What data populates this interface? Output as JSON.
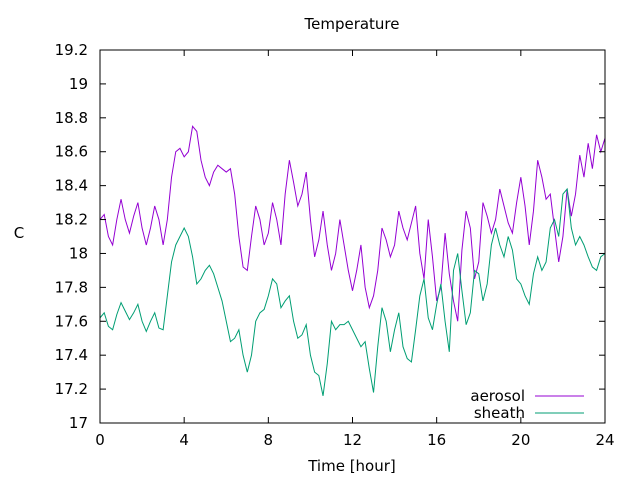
{
  "chart_data": {
    "type": "line",
    "title": "Temperature",
    "xlabel": "Time [hour]",
    "ylabel": "C",
    "xlim": [
      0,
      24
    ],
    "ylim": [
      17,
      19.2
    ],
    "xticks": [
      0,
      4,
      8,
      12,
      16,
      20,
      24
    ],
    "yticks": [
      17,
      17.2,
      17.4,
      17.6,
      17.8,
      18,
      18.2,
      18.4,
      18.6,
      18.8,
      19,
      19.2
    ],
    "xtick_labels": [
      "0",
      "4",
      "8",
      "12",
      "16",
      "20",
      "24"
    ],
    "ytick_labels": [
      "17",
      "17.2",
      "17.4",
      "17.6",
      "17.8",
      "18",
      "18.2",
      "18.4",
      "18.6",
      "18.8",
      "19",
      "19.2"
    ],
    "grid": false,
    "legend_position": "bottom-right",
    "series": [
      {
        "name": "aerosol",
        "color": "#9400d3",
        "x": [
          0,
          0.2,
          0.4,
          0.6,
          0.8,
          1.0,
          1.2,
          1.4,
          1.6,
          1.8,
          2.0,
          2.2,
          2.4,
          2.6,
          2.8,
          3.0,
          3.2,
          3.4,
          3.6,
          3.8,
          4.0,
          4.2,
          4.4,
          4.6,
          4.8,
          5.0,
          5.2,
          5.4,
          5.6,
          5.8,
          6.0,
          6.2,
          6.4,
          6.6,
          6.8,
          7.0,
          7.2,
          7.4,
          7.6,
          7.8,
          8.0,
          8.2,
          8.4,
          8.6,
          8.8,
          9.0,
          9.2,
          9.4,
          9.6,
          9.8,
          10.0,
          10.2,
          10.4,
          10.6,
          10.8,
          11.0,
          11.2,
          11.4,
          11.6,
          11.8,
          12.0,
          12.2,
          12.4,
          12.6,
          12.8,
          13.0,
          13.2,
          13.4,
          13.6,
          13.8,
          14.0,
          14.2,
          14.4,
          14.6,
          14.8,
          15.0,
          15.2,
          15.4,
          15.6,
          15.8,
          16.0,
          16.2,
          16.4,
          16.6,
          16.8,
          17.0,
          17.2,
          17.4,
          17.6,
          17.8,
          18.0,
          18.2,
          18.4,
          18.6,
          18.8,
          19.0,
          19.2,
          19.4,
          19.6,
          19.8,
          20.0,
          20.2,
          20.4,
          20.6,
          20.8,
          21.0,
          21.2,
          21.4,
          21.6,
          21.8,
          22.0,
          22.2,
          22.4,
          22.6,
          22.8,
          23.0,
          23.2,
          23.4,
          23.6,
          23.8,
          24.0
        ],
        "y": [
          18.2,
          18.23,
          18.1,
          18.05,
          18.2,
          18.32,
          18.2,
          18.12,
          18.22,
          18.3,
          18.15,
          18.05,
          18.15,
          18.28,
          18.2,
          18.05,
          18.2,
          18.45,
          18.6,
          18.62,
          18.57,
          18.6,
          18.75,
          18.72,
          18.55,
          18.45,
          18.4,
          18.48,
          18.52,
          18.5,
          18.48,
          18.5,
          18.35,
          18.1,
          17.92,
          17.9,
          18.1,
          18.28,
          18.2,
          18.05,
          18.12,
          18.3,
          18.2,
          18.05,
          18.35,
          18.55,
          18.42,
          18.28,
          18.35,
          18.48,
          18.2,
          17.98,
          18.08,
          18.25,
          18.05,
          17.9,
          18.0,
          18.2,
          18.05,
          17.9,
          17.78,
          17.9,
          18.05,
          17.8,
          17.68,
          17.75,
          17.9,
          18.15,
          18.08,
          17.98,
          18.05,
          18.25,
          18.15,
          18.08,
          18.18,
          18.28,
          18.0,
          17.85,
          18.2,
          17.98,
          17.72,
          17.8,
          18.12,
          17.88,
          17.72,
          17.6,
          18.02,
          18.25,
          18.15,
          17.85,
          17.95,
          18.3,
          18.22,
          18.12,
          18.2,
          18.38,
          18.28,
          18.18,
          18.12,
          18.3,
          18.45,
          18.28,
          18.05,
          18.25,
          18.55,
          18.45,
          18.32,
          18.35,
          18.15,
          17.95,
          18.1,
          18.38,
          18.22,
          18.35,
          18.58,
          18.45,
          18.65,
          18.5,
          18.7,
          18.6,
          18.68
        ],
        "x_note": ""
      },
      {
        "name": "sheath",
        "color": "#009e73",
        "x": [
          0,
          0.2,
          0.4,
          0.6,
          0.8,
          1.0,
          1.2,
          1.4,
          1.6,
          1.8,
          2.0,
          2.2,
          2.4,
          2.6,
          2.8,
          3.0,
          3.2,
          3.4,
          3.6,
          3.8,
          4.0,
          4.2,
          4.4,
          4.6,
          4.8,
          5.0,
          5.2,
          5.4,
          5.6,
          5.8,
          6.0,
          6.2,
          6.4,
          6.6,
          6.8,
          7.0,
          7.2,
          7.4,
          7.6,
          7.8,
          8.0,
          8.2,
          8.4,
          8.6,
          8.8,
          9.0,
          9.2,
          9.4,
          9.6,
          9.8,
          10.0,
          10.2,
          10.4,
          10.6,
          10.8,
          11.0,
          11.2,
          11.4,
          11.6,
          11.8,
          12.0,
          12.2,
          12.4,
          12.6,
          12.8,
          13.0,
          13.2,
          13.4,
          13.6,
          13.8,
          14.0,
          14.2,
          14.4,
          14.6,
          14.8,
          15.0,
          15.2,
          15.4,
          15.6,
          15.8,
          16.0,
          16.2,
          16.4,
          16.6,
          16.8,
          17.0,
          17.2,
          17.4,
          17.6,
          17.8,
          18.0,
          18.2,
          18.4,
          18.6,
          18.8,
          19.0,
          19.2,
          19.4,
          19.6,
          19.8,
          20.0,
          20.2,
          20.4,
          20.6,
          20.8,
          21.0,
          21.2,
          21.4,
          21.6,
          21.8,
          22.0,
          22.2,
          22.4,
          22.6,
          22.8,
          23.0,
          23.2,
          23.4,
          23.6,
          23.8,
          24.0
        ],
        "y": [
          17.62,
          17.65,
          17.57,
          17.55,
          17.64,
          17.71,
          17.66,
          17.61,
          17.65,
          17.7,
          17.6,
          17.54,
          17.6,
          17.65,
          17.56,
          17.55,
          17.75,
          17.95,
          18.05,
          18.1,
          18.15,
          18.1,
          17.98,
          17.82,
          17.85,
          17.9,
          17.93,
          17.88,
          17.8,
          17.72,
          17.6,
          17.48,
          17.5,
          17.55,
          17.4,
          17.3,
          17.4,
          17.6,
          17.65,
          17.67,
          17.75,
          17.85,
          17.82,
          17.68,
          17.72,
          17.75,
          17.6,
          17.5,
          17.52,
          17.58,
          17.4,
          17.3,
          17.28,
          17.16,
          17.35,
          17.6,
          17.55,
          17.58,
          17.58,
          17.6,
          17.55,
          17.5,
          17.45,
          17.48,
          17.32,
          17.18,
          17.45,
          17.68,
          17.6,
          17.42,
          17.55,
          17.65,
          17.45,
          17.38,
          17.36,
          17.55,
          17.75,
          17.85,
          17.62,
          17.55,
          17.7,
          17.82,
          17.6,
          17.42,
          17.9,
          18.0,
          17.78,
          17.58,
          17.65,
          17.9,
          17.88,
          17.72,
          17.82,
          18.05,
          18.15,
          18.05,
          17.98,
          18.1,
          18.02,
          17.85,
          17.82,
          17.75,
          17.7,
          17.88,
          17.98,
          17.9,
          17.95,
          18.15,
          18.2,
          18.1,
          18.35,
          18.38,
          18.15,
          18.05,
          18.1,
          18.05,
          17.98,
          17.92,
          17.9,
          17.98,
          18.0
        ]
      }
    ]
  }
}
